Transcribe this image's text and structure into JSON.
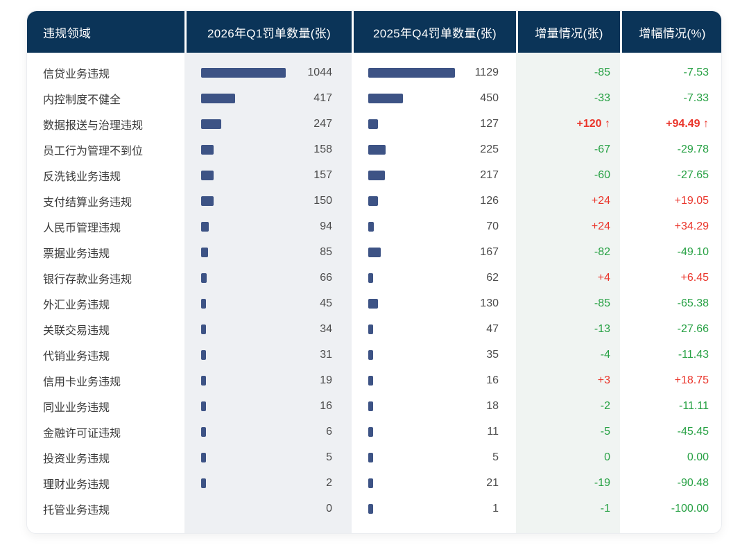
{
  "colors": {
    "header_bg": "#0b3458",
    "bar": "#3d5385",
    "q1_column_bg": "#eef0f3",
    "delta_column_bg": "#f0f4f2",
    "decrease_green": "#27a144",
    "increase_red": "#ea352b",
    "label_text": "#3a3a3a",
    "value_text": "#4c4c4c"
  },
  "chart_data": {
    "type": "table",
    "title": "",
    "columns": [
      "违规领域",
      "2026年Q1罚单数量(张)",
      "2025年Q4罚单数量(张)",
      "增量情况(张)",
      "增幅情况(%)"
    ],
    "bar_style": "horizontal in-cell bars, each count column scaled to its own max",
    "rows": [
      {
        "label": "信贷业务违规",
        "q1": 1044,
        "q4": 1129,
        "delta": "-85",
        "rate": "-7.53",
        "dir": "down",
        "emphasis": false
      },
      {
        "label": "内控制度不健全",
        "q1": 417,
        "q4": 450,
        "delta": "-33",
        "rate": "-7.33",
        "dir": "down",
        "emphasis": false
      },
      {
        "label": "数据报送与治理违规",
        "q1": 247,
        "q4": 127,
        "delta": "+120 ↑",
        "rate": "+94.49 ↑",
        "dir": "up",
        "emphasis": true
      },
      {
        "label": "员工行为管理不到位",
        "q1": 158,
        "q4": 225,
        "delta": "-67",
        "rate": "-29.78",
        "dir": "down",
        "emphasis": false
      },
      {
        "label": "反洗钱业务违规",
        "q1": 157,
        "q4": 217,
        "delta": "-60",
        "rate": "-27.65",
        "dir": "down",
        "emphasis": false
      },
      {
        "label": "支付结算业务违规",
        "q1": 150,
        "q4": 126,
        "delta": "+24",
        "rate": "+19.05",
        "dir": "up",
        "emphasis": false
      },
      {
        "label": "人民币管理违规",
        "q1": 94,
        "q4": 70,
        "delta": "+24",
        "rate": "+34.29",
        "dir": "up",
        "emphasis": false
      },
      {
        "label": "票据业务违规",
        "q1": 85,
        "q4": 167,
        "delta": "-82",
        "rate": "-49.10",
        "dir": "down",
        "emphasis": false
      },
      {
        "label": "银行存款业务违规",
        "q1": 66,
        "q4": 62,
        "delta": "+4",
        "rate": "+6.45",
        "dir": "up",
        "emphasis": false
      },
      {
        "label": "外汇业务违规",
        "q1": 45,
        "q4": 130,
        "delta": "-85",
        "rate": "-65.38",
        "dir": "down",
        "emphasis": false
      },
      {
        "label": "关联交易违规",
        "q1": 34,
        "q4": 47,
        "delta": "-13",
        "rate": "-27.66",
        "dir": "down",
        "emphasis": false
      },
      {
        "label": "代销业务违规",
        "q1": 31,
        "q4": 35,
        "delta": "-4",
        "rate": "-11.43",
        "dir": "down",
        "emphasis": false
      },
      {
        "label": "信用卡业务违规",
        "q1": 19,
        "q4": 16,
        "delta": "+3",
        "rate": "+18.75",
        "dir": "up",
        "emphasis": false
      },
      {
        "label": "同业业务违规",
        "q1": 16,
        "q4": 18,
        "delta": "-2",
        "rate": "-11.11",
        "dir": "down",
        "emphasis": false
      },
      {
        "label": "金融许可证违规",
        "q1": 6,
        "q4": 11,
        "delta": "-5",
        "rate": "-45.45",
        "dir": "down",
        "emphasis": false
      },
      {
        "label": "投资业务违规",
        "q1": 5,
        "q4": 5,
        "delta": "0",
        "rate": "0.00",
        "dir": "zero",
        "emphasis": false
      },
      {
        "label": "理财业务违规",
        "q1": 2,
        "q4": 21,
        "delta": "-19",
        "rate": "-90.48",
        "dir": "down",
        "emphasis": false
      },
      {
        "label": "托管业务违规",
        "q1": 0,
        "q4": 1,
        "delta": "-1",
        "rate": "-100.00",
        "dir": "down",
        "emphasis": false
      }
    ]
  }
}
